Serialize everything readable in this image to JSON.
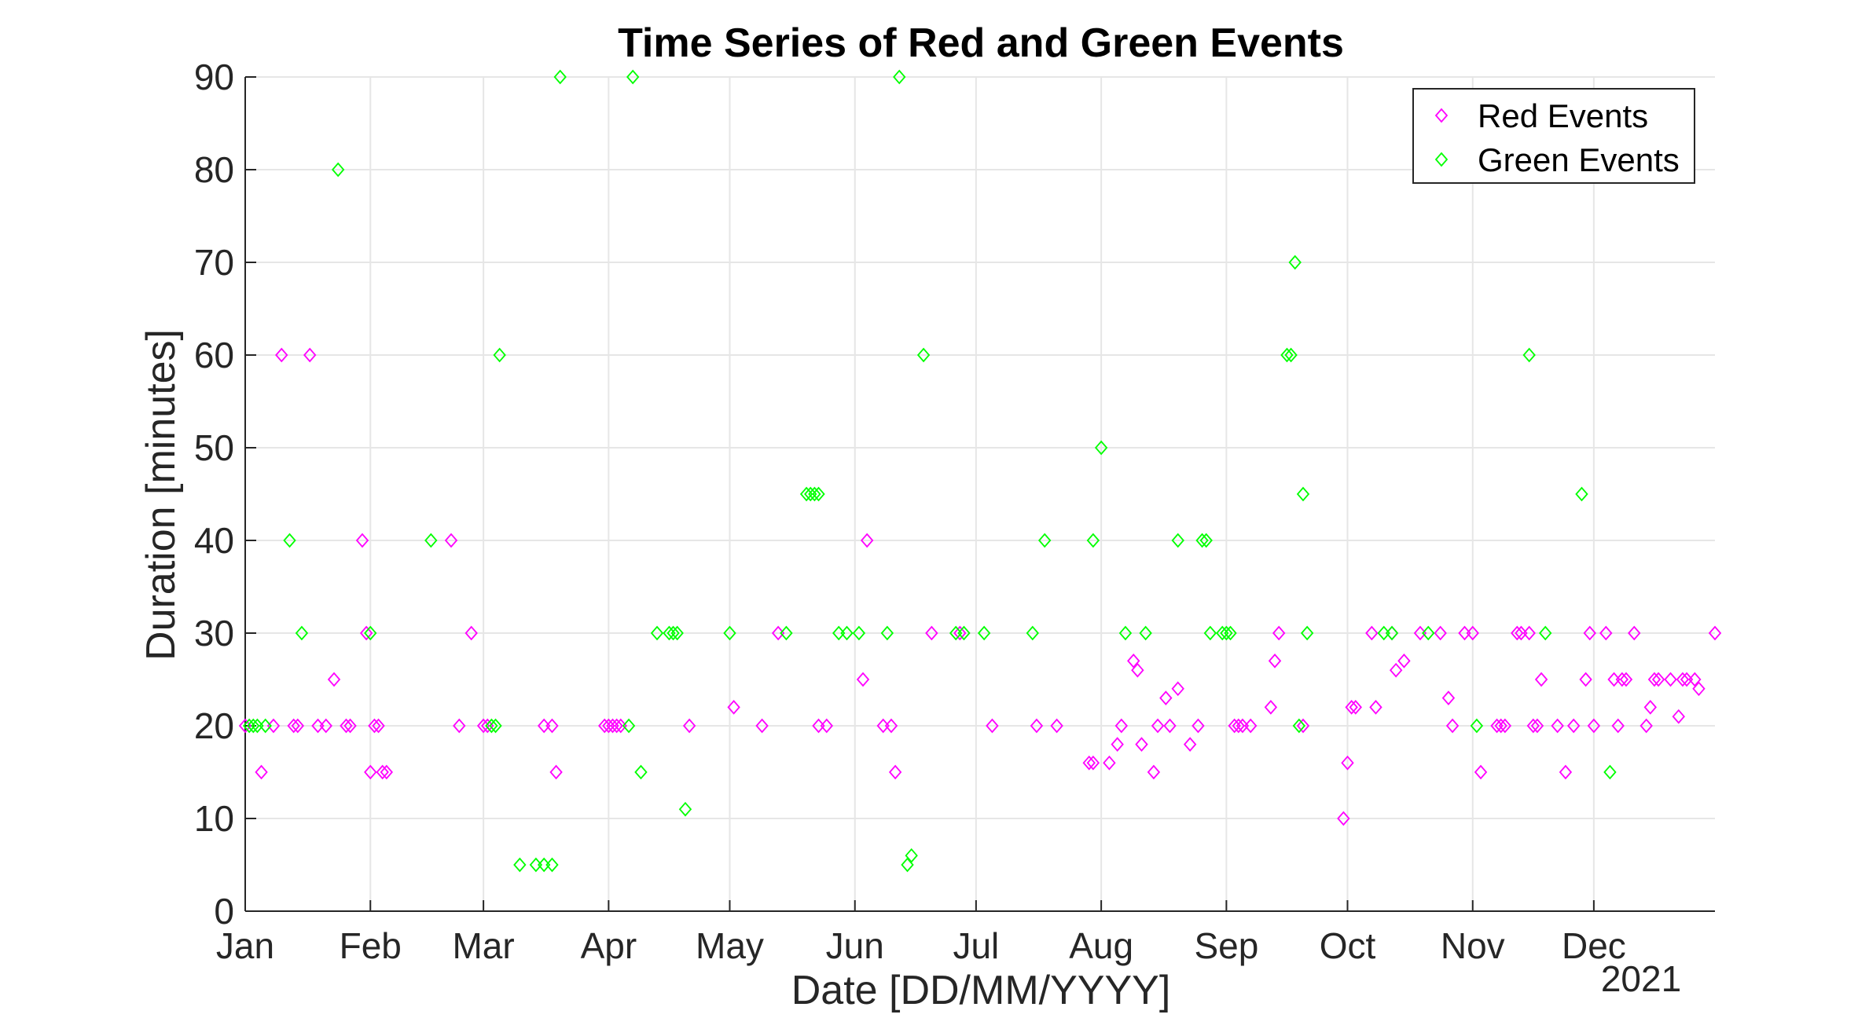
{
  "chart_data": {
    "type": "scatter",
    "title": "Time Series of Red and Green Events",
    "xlabel": "Date [DD/MM/YYYY]",
    "ylabel": "Duration [minutes]",
    "x_secondary_label": "2021",
    "xlim": [
      "2021-01-01",
      "2021-12-31"
    ],
    "ylim": [
      0,
      90
    ],
    "x_ticks": [
      {
        "date": "2021-01-01",
        "label": "Jan"
      },
      {
        "date": "2021-02-01",
        "label": "Feb"
      },
      {
        "date": "2021-03-01",
        "label": "Mar"
      },
      {
        "date": "2021-04-01",
        "label": "Apr"
      },
      {
        "date": "2021-05-01",
        "label": "May"
      },
      {
        "date": "2021-06-01",
        "label": "Jun"
      },
      {
        "date": "2021-07-01",
        "label": "Jul"
      },
      {
        "date": "2021-08-01",
        "label": "Aug"
      },
      {
        "date": "2021-09-01",
        "label": "Sep"
      },
      {
        "date": "2021-10-01",
        "label": "Oct"
      },
      {
        "date": "2021-11-01",
        "label": "Nov"
      },
      {
        "date": "2021-12-01",
        "label": "Dec"
      }
    ],
    "y_ticks": [
      0,
      10,
      20,
      30,
      40,
      50,
      60,
      70,
      80,
      90
    ],
    "grid": true,
    "legend_position": "top-right",
    "marker": "diamond",
    "series": [
      {
        "name": "Red Events",
        "color": "#ff00ff",
        "points": [
          [
            "2021-01-01",
            20
          ],
          [
            "2021-01-05",
            15
          ],
          [
            "2021-01-08",
            20
          ],
          [
            "2021-01-10",
            60
          ],
          [
            "2021-01-13",
            20
          ],
          [
            "2021-01-14",
            20
          ],
          [
            "2021-01-17",
            60
          ],
          [
            "2021-01-19",
            20
          ],
          [
            "2021-01-21",
            20
          ],
          [
            "2021-01-23",
            25
          ],
          [
            "2021-01-26",
            20
          ],
          [
            "2021-01-27",
            20
          ],
          [
            "2021-01-30",
            40
          ],
          [
            "2021-01-31",
            30
          ],
          [
            "2021-02-01",
            15
          ],
          [
            "2021-02-02",
            20
          ],
          [
            "2021-02-03",
            20
          ],
          [
            "2021-02-04",
            15
          ],
          [
            "2021-02-05",
            15
          ],
          [
            "2021-02-21",
            40
          ],
          [
            "2021-02-23",
            20
          ],
          [
            "2021-02-26",
            30
          ],
          [
            "2021-03-01",
            20
          ],
          [
            "2021-03-02",
            20
          ],
          [
            "2021-03-16",
            20
          ],
          [
            "2021-03-18",
            20
          ],
          [
            "2021-03-19",
            15
          ],
          [
            "2021-03-31",
            20
          ],
          [
            "2021-04-01",
            20
          ],
          [
            "2021-04-02",
            20
          ],
          [
            "2021-04-03",
            20
          ],
          [
            "2021-04-04",
            20
          ],
          [
            "2021-04-21",
            20
          ],
          [
            "2021-05-02",
            22
          ],
          [
            "2021-05-09",
            20
          ],
          [
            "2021-05-13",
            30
          ],
          [
            "2021-05-23",
            20
          ],
          [
            "2021-05-25",
            20
          ],
          [
            "2021-06-03",
            25
          ],
          [
            "2021-06-04",
            40
          ],
          [
            "2021-06-08",
            20
          ],
          [
            "2021-06-10",
            20
          ],
          [
            "2021-06-11",
            15
          ],
          [
            "2021-06-20",
            30
          ],
          [
            "2021-06-27",
            30
          ],
          [
            "2021-07-05",
            20
          ],
          [
            "2021-07-16",
            20
          ],
          [
            "2021-07-21",
            20
          ],
          [
            "2021-07-29",
            16
          ],
          [
            "2021-07-30",
            16
          ],
          [
            "2021-08-03",
            16
          ],
          [
            "2021-08-05",
            18
          ],
          [
            "2021-08-06",
            20
          ],
          [
            "2021-08-09",
            27
          ],
          [
            "2021-08-10",
            26
          ],
          [
            "2021-08-11",
            18
          ],
          [
            "2021-08-14",
            15
          ],
          [
            "2021-08-15",
            20
          ],
          [
            "2021-08-17",
            23
          ],
          [
            "2021-08-18",
            20
          ],
          [
            "2021-08-20",
            24
          ],
          [
            "2021-08-23",
            18
          ],
          [
            "2021-08-25",
            20
          ],
          [
            "2021-09-03",
            20
          ],
          [
            "2021-09-04",
            20
          ],
          [
            "2021-09-05",
            20
          ],
          [
            "2021-09-07",
            20
          ],
          [
            "2021-09-12",
            22
          ],
          [
            "2021-09-13",
            27
          ],
          [
            "2021-09-14",
            30
          ],
          [
            "2021-09-20",
            20
          ],
          [
            "2021-09-30",
            10
          ],
          [
            "2021-10-01",
            16
          ],
          [
            "2021-10-02",
            22
          ],
          [
            "2021-10-03",
            22
          ],
          [
            "2021-10-07",
            30
          ],
          [
            "2021-10-08",
            22
          ],
          [
            "2021-10-12",
            30
          ],
          [
            "2021-10-13",
            26
          ],
          [
            "2021-10-15",
            27
          ],
          [
            "2021-10-19",
            30
          ],
          [
            "2021-10-24",
            30
          ],
          [
            "2021-10-26",
            23
          ],
          [
            "2021-10-27",
            20
          ],
          [
            "2021-10-30",
            30
          ],
          [
            "2021-11-01",
            30
          ],
          [
            "2021-11-03",
            15
          ],
          [
            "2021-11-07",
            20
          ],
          [
            "2021-11-08",
            20
          ],
          [
            "2021-11-09",
            20
          ],
          [
            "2021-11-12",
            30
          ],
          [
            "2021-11-13",
            30
          ],
          [
            "2021-11-15",
            30
          ],
          [
            "2021-11-16",
            20
          ],
          [
            "2021-11-17",
            20
          ],
          [
            "2021-11-18",
            25
          ],
          [
            "2021-11-22",
            20
          ],
          [
            "2021-11-24",
            15
          ],
          [
            "2021-11-26",
            20
          ],
          [
            "2021-11-29",
            25
          ],
          [
            "2021-11-30",
            30
          ],
          [
            "2021-12-01",
            20
          ],
          [
            "2021-12-04",
            30
          ],
          [
            "2021-12-06",
            25
          ],
          [
            "2021-12-07",
            20
          ],
          [
            "2021-12-08",
            25
          ],
          [
            "2021-12-09",
            25
          ],
          [
            "2021-12-11",
            30
          ],
          [
            "2021-12-14",
            20
          ],
          [
            "2021-12-15",
            22
          ],
          [
            "2021-12-16",
            25
          ],
          [
            "2021-12-17",
            25
          ],
          [
            "2021-12-20",
            25
          ],
          [
            "2021-12-22",
            21
          ],
          [
            "2021-12-23",
            25
          ],
          [
            "2021-12-24",
            25
          ],
          [
            "2021-12-26",
            25
          ],
          [
            "2021-12-27",
            24
          ],
          [
            "2021-12-31",
            30
          ]
        ]
      },
      {
        "name": "Green Events",
        "color": "#00ff00",
        "points": [
          [
            "2021-01-02",
            20
          ],
          [
            "2021-01-03",
            20
          ],
          [
            "2021-01-04",
            20
          ],
          [
            "2021-01-06",
            20
          ],
          [
            "2021-01-12",
            40
          ],
          [
            "2021-01-15",
            30
          ],
          [
            "2021-01-24",
            80
          ],
          [
            "2021-02-01",
            30
          ],
          [
            "2021-02-16",
            40
          ],
          [
            "2021-03-03",
            20
          ],
          [
            "2021-03-04",
            20
          ],
          [
            "2021-03-05",
            60
          ],
          [
            "2021-03-10",
            5
          ],
          [
            "2021-03-14",
            5
          ],
          [
            "2021-03-16",
            5
          ],
          [
            "2021-03-18",
            5
          ],
          [
            "2021-03-20",
            90
          ],
          [
            "2021-04-06",
            20
          ],
          [
            "2021-04-07",
            90
          ],
          [
            "2021-04-09",
            15
          ],
          [
            "2021-04-13",
            30
          ],
          [
            "2021-04-16",
            30
          ],
          [
            "2021-04-17",
            30
          ],
          [
            "2021-04-18",
            30
          ],
          [
            "2021-04-20",
            11
          ],
          [
            "2021-05-01",
            30
          ],
          [
            "2021-05-15",
            30
          ],
          [
            "2021-05-20",
            45
          ],
          [
            "2021-05-21",
            45
          ],
          [
            "2021-05-22",
            45
          ],
          [
            "2021-05-23",
            45
          ],
          [
            "2021-05-28",
            30
          ],
          [
            "2021-05-30",
            30
          ],
          [
            "2021-06-02",
            30
          ],
          [
            "2021-06-09",
            30
          ],
          [
            "2021-06-12",
            90
          ],
          [
            "2021-06-14",
            5
          ],
          [
            "2021-06-15",
            6
          ],
          [
            "2021-06-18",
            60
          ],
          [
            "2021-06-26",
            30
          ],
          [
            "2021-06-28",
            30
          ],
          [
            "2021-07-03",
            30
          ],
          [
            "2021-07-15",
            30
          ],
          [
            "2021-07-18",
            40
          ],
          [
            "2021-07-30",
            40
          ],
          [
            "2021-08-01",
            50
          ],
          [
            "2021-08-07",
            30
          ],
          [
            "2021-08-12",
            30
          ],
          [
            "2021-08-20",
            40
          ],
          [
            "2021-08-26",
            40
          ],
          [
            "2021-08-27",
            40
          ],
          [
            "2021-08-28",
            30
          ],
          [
            "2021-08-31",
            30
          ],
          [
            "2021-09-01",
            30
          ],
          [
            "2021-09-02",
            30
          ],
          [
            "2021-09-16",
            60
          ],
          [
            "2021-09-17",
            60
          ],
          [
            "2021-09-18",
            70
          ],
          [
            "2021-09-19",
            20
          ],
          [
            "2021-09-20",
            45
          ],
          [
            "2021-09-21",
            30
          ],
          [
            "2021-10-10",
            30
          ],
          [
            "2021-10-12",
            30
          ],
          [
            "2021-10-21",
            30
          ],
          [
            "2021-11-02",
            20
          ],
          [
            "2021-11-15",
            60
          ],
          [
            "2021-11-19",
            30
          ],
          [
            "2021-11-28",
            45
          ],
          [
            "2021-12-05",
            15
          ]
        ]
      }
    ]
  }
}
